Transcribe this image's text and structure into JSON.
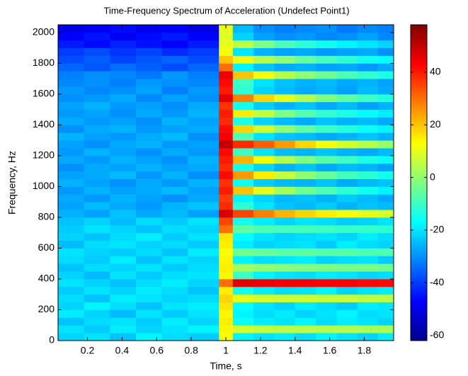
{
  "chart_data": {
    "type": "heatmap",
    "title": "Time-Frequency Spectrum of Acceleration (Undefect Point1)",
    "x_label": "Time, s",
    "y_label": "Frequency, Hz",
    "xbins": [
      0.03,
      0.18,
      0.33,
      0.48,
      0.63,
      0.78,
      0.96,
      1.04,
      1.16,
      1.28,
      1.4,
      1.52,
      1.64,
      1.76,
      1.88,
      1.97
    ],
    "ybins": [
      0,
      50,
      100,
      150,
      200,
      250,
      300,
      350,
      400,
      450,
      500,
      550,
      600,
      650,
      700,
      750,
      800,
      850,
      900,
      950,
      1000,
      1050,
      1100,
      1150,
      1200,
      1250,
      1300,
      1350,
      1400,
      1450,
      1500,
      1550,
      1600,
      1650,
      1700,
      1750,
      1800,
      1850,
      1900,
      1950,
      2000,
      2050
    ],
    "z": [
      [
        -22,
        -20,
        -24,
        -18,
        -21,
        -23,
        12,
        -18,
        -20,
        -19,
        -21,
        -18,
        -20,
        -22,
        -19
      ],
      [
        -20,
        -23,
        -19,
        -22,
        -20,
        -18,
        14,
        8,
        6,
        5,
        5,
        4,
        4,
        3,
        3
      ],
      [
        -24,
        -21,
        -20,
        -23,
        -19,
        -22,
        15,
        -16,
        -19,
        -20,
        -18,
        -21,
        -19,
        -20,
        -22
      ],
      [
        -19,
        -22,
        -25,
        -20,
        -23,
        -20,
        14,
        -18,
        -21,
        -19,
        -22,
        -20,
        -18,
        -21,
        -20
      ],
      [
        -22,
        -18,
        -21,
        -24,
        -20,
        -19,
        16,
        -17,
        -20,
        -22,
        -19,
        -21,
        -23,
        -19,
        -20
      ],
      [
        -21,
        -24,
        -19,
        -20,
        -22,
        -21,
        18,
        10,
        8,
        7,
        7,
        6,
        6,
        5,
        5
      ],
      [
        -23,
        -20,
        -22,
        -19,
        -21,
        -24,
        15,
        -15,
        -19,
        -21,
        -20,
        -18,
        -22,
        -20,
        -19
      ],
      [
        -20,
        -22,
        -24,
        -21,
        -19,
        -22,
        30,
        46,
        45,
        44,
        44,
        43,
        43,
        42,
        42
      ],
      [
        -22,
        -25,
        -20,
        -23,
        -21,
        -20,
        14,
        -10,
        -18,
        -20,
        -21,
        -19,
        -20,
        -22,
        -21
      ],
      [
        -24,
        -21,
        -22,
        -20,
        -23,
        -21,
        15,
        2,
        0,
        -1,
        -2,
        -2,
        -3,
        -3,
        -4
      ],
      [
        -21,
        -23,
        -19,
        -24,
        -20,
        -22,
        14,
        -18,
        -21,
        -20,
        -19,
        -22,
        -21,
        -20,
        -23
      ],
      [
        -20,
        -22,
        -23,
        -21,
        -24,
        -19,
        13,
        -4,
        -5,
        -6,
        -6,
        -7,
        -7,
        -8,
        -8
      ],
      [
        -25,
        -21,
        -20,
        -22,
        -21,
        -23,
        15,
        -19,
        -22,
        -21,
        -20,
        -23,
        -19,
        -21,
        -22
      ],
      [
        -22,
        -24,
        -21,
        -19,
        -23,
        -20,
        16,
        -17,
        -20,
        -22,
        -21,
        -20,
        -22,
        -19,
        -21
      ],
      [
        -23,
        -20,
        -22,
        -24,
        -21,
        -22,
        30,
        -6,
        -8,
        -9,
        -9,
        -10,
        -11,
        -11,
        -12
      ],
      [
        -24,
        -22,
        -25,
        -21,
        -23,
        -20,
        35,
        -15,
        -19,
        -22,
        -20,
        -21,
        -23,
        -22,
        -20
      ],
      [
        -26,
        -28,
        -24,
        -27,
        -25,
        -28,
        48,
        35,
        28,
        22,
        18,
        15,
        12,
        10,
        8
      ],
      [
        -28,
        -25,
        -27,
        -29,
        -26,
        -24,
        38,
        -12,
        -20,
        -24,
        -25,
        -23,
        -26,
        -24,
        -25
      ],
      [
        -27,
        -29,
        -26,
        -28,
        -30,
        -27,
        36,
        -18,
        -22,
        -25,
        -24,
        -26,
        -23,
        -25,
        -27
      ],
      [
        -29,
        -26,
        -28,
        -27,
        -25,
        -28,
        40,
        20,
        10,
        2,
        -4,
        -8,
        -12,
        -15,
        -18
      ],
      [
        -26,
        -28,
        -30,
        -27,
        -29,
        -26,
        37,
        -16,
        -23,
        -25,
        -26,
        -24,
        -27,
        -25,
        -24
      ],
      [
        -28,
        -27,
        -25,
        -29,
        -26,
        -30,
        42,
        25,
        15,
        6,
        0,
        -5,
        -9,
        -12,
        -15
      ],
      [
        -30,
        -27,
        -28,
        -26,
        -28,
        -27,
        38,
        -15,
        -22,
        -26,
        -24,
        -27,
        -25,
        -26,
        -28
      ],
      [
        -27,
        -29,
        -26,
        -28,
        -30,
        -26,
        40,
        22,
        12,
        4,
        -2,
        -7,
        -10,
        -14,
        -16
      ],
      [
        -29,
        -26,
        -28,
        -30,
        -27,
        -29,
        42,
        -10,
        -20,
        -25,
        -26,
        -24,
        -26,
        -27,
        -25
      ],
      [
        -28,
        -30,
        -27,
        -26,
        -29,
        -28,
        50,
        38,
        32,
        25,
        18,
        12,
        8,
        4,
        0
      ],
      [
        -26,
        -28,
        -29,
        -27,
        -25,
        -30,
        44,
        -8,
        -20,
        -24,
        -25,
        -27,
        -26,
        -24,
        -26
      ],
      [
        -30,
        -27,
        -26,
        -29,
        -28,
        -27,
        42,
        18,
        8,
        0,
        -6,
        -10,
        -13,
        -16,
        -18
      ],
      [
        -27,
        -29,
        -28,
        -30,
        -26,
        -28,
        38,
        -14,
        -22,
        -25,
        -27,
        -24,
        -26,
        -25,
        -27
      ],
      [
        -29,
        -28,
        -30,
        -27,
        -29,
        -26,
        40,
        15,
        6,
        -2,
        -7,
        -11,
        -14,
        -17,
        -19
      ],
      [
        -28,
        -26,
        -29,
        -28,
        -30,
        -27,
        37,
        -15,
        -23,
        -26,
        -24,
        -27,
        -25,
        -28,
        -26
      ],
      [
        -30,
        -29,
        -27,
        -31,
        -28,
        -30,
        46,
        28,
        18,
        10,
        4,
        -2,
        -6,
        -10,
        -13
      ],
      [
        -29,
        -31,
        -30,
        -28,
        -32,
        -29,
        40,
        -12,
        -22,
        -25,
        -27,
        -26,
        -28,
        -25,
        -27
      ],
      [
        -31,
        -30,
        -32,
        -29,
        -30,
        -31,
        42,
        -10,
        -20,
        -24,
        -26,
        -25,
        -27,
        -26,
        -28
      ],
      [
        -32,
        -30,
        -31,
        -33,
        -29,
        -32,
        45,
        20,
        12,
        5,
        0,
        -4,
        -8,
        -11,
        -14
      ],
      [
        -35,
        -37,
        -34,
        -36,
        -38,
        -35,
        30,
        -18,
        -24,
        -27,
        -26,
        -28,
        -27,
        -29,
        -27
      ],
      [
        -38,
        -36,
        -39,
        -37,
        -35,
        -38,
        20,
        12,
        5,
        0,
        -5,
        -9,
        -12,
        -15,
        -17
      ],
      [
        -40,
        -38,
        -41,
        -39,
        -42,
        -40,
        12,
        -20,
        -26,
        -28,
        -27,
        -29,
        -28,
        -27,
        -30
      ],
      [
        -44,
        -46,
        -43,
        -45,
        -47,
        -44,
        10,
        5,
        -2,
        -8,
        -12,
        -15,
        -18,
        -20,
        -22
      ],
      [
        -47,
        -45,
        -48,
        -46,
        -44,
        -47,
        9,
        -22,
        -28,
        -30,
        -29,
        -31,
        -30,
        -28,
        -31
      ],
      [
        -50,
        -48,
        -46,
        -49,
        -47,
        -50,
        10,
        -25,
        -30,
        -32,
        -31,
        -30,
        -33,
        -31,
        -32
      ]
    ],
    "xlim": [
      0.03,
      1.97
    ],
    "xticks": [
      0.2,
      0.4,
      0.6,
      0.8,
      1,
      1.2,
      1.4,
      1.6,
      1.8
    ],
    "ylim": [
      0,
      2050
    ],
    "yticks": [
      0,
      200,
      400,
      600,
      800,
      1000,
      1200,
      1400,
      1600,
      1800,
      2000
    ],
    "clim": [
      -62,
      58
    ],
    "cticks": [
      -60,
      -40,
      -20,
      0,
      20,
      40
    ],
    "colormap": "jet"
  }
}
